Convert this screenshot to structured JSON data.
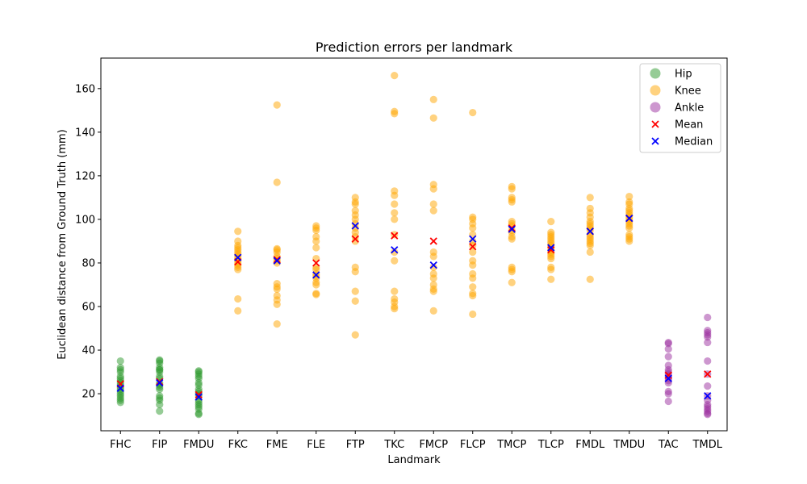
{
  "chart_data": {
    "type": "scatter",
    "title": "Prediction errors per landmark",
    "xlabel": "Landmark",
    "ylabel": "Euclidean distance from Ground Truth (mm)",
    "ylim": [
      3,
      174
    ],
    "yticks": [
      20,
      40,
      60,
      80,
      100,
      120,
      140,
      160
    ],
    "categories": [
      "FHC",
      "FIP",
      "FMDU",
      "FKC",
      "FME",
      "FLE",
      "FTP",
      "TKC",
      "FMCP",
      "FLCP",
      "TMCP",
      "TLCP",
      "FMDL",
      "TMDU",
      "TAC",
      "TMDL"
    ],
    "grid": false,
    "legend_position": "top-right",
    "groups": [
      {
        "name": "Hip",
        "color": "#2e9a2e"
      },
      {
        "name": "Knee",
        "color": "#ffa500"
      },
      {
        "name": "Ankle",
        "color": "#9b30a0"
      }
    ],
    "stat_markers": [
      {
        "name": "Mean",
        "color": "#ff0000"
      },
      {
        "name": "Median",
        "color": "#0000ff"
      }
    ],
    "landmarks": [
      {
        "name": "FHC",
        "group": "Hip",
        "points": [
          35,
          32,
          31,
          30,
          28,
          27,
          26,
          25,
          24,
          23,
          22,
          21,
          20,
          19,
          18,
          17,
          16
        ],
        "mean": 24.5,
        "median": 22.5
      },
      {
        "name": "FIP",
        "group": "Hip",
        "points": [
          35.5,
          35,
          34,
          32,
          31,
          31,
          30,
          28,
          27,
          25,
          24,
          23,
          22,
          19,
          18,
          17,
          15,
          12
        ],
        "mean": 25.5,
        "median": 25
      },
      {
        "name": "FMDU",
        "group": "Hip",
        "points": [
          30.5,
          30,
          29,
          28,
          27,
          25,
          24,
          22,
          21,
          20,
          19,
          17,
          16,
          15,
          14,
          13,
          11,
          10.5
        ],
        "mean": 19.5,
        "median": 18.5
      },
      {
        "name": "FKC",
        "group": "Knee",
        "points": [
          94.5,
          90,
          88,
          87,
          86,
          85,
          84,
          83,
          82,
          81,
          80,
          79,
          78,
          77,
          63.5,
          58
        ],
        "mean": 80.5,
        "median": 82.5
      },
      {
        "name": "FME",
        "group": "Knee",
        "points": [
          152.5,
          117,
          86.5,
          86,
          85,
          83,
          82,
          81,
          80,
          70.5,
          69,
          68,
          65,
          63,
          61,
          52
        ],
        "mean": 81.5,
        "median": 81
      },
      {
        "name": "FLE",
        "group": "Knee",
        "points": [
          97,
          96,
          95,
          92,
          90,
          87,
          82,
          78,
          77,
          75,
          74,
          73,
          71,
          70,
          66,
          65.5
        ],
        "mean": 80,
        "median": 74.5
      },
      {
        "name": "FTP",
        "group": "Knee",
        "points": [
          110,
          108,
          107,
          104,
          102,
          100,
          98,
          96,
          94,
          92,
          90,
          78,
          76,
          67,
          62.5,
          47
        ],
        "mean": 91,
        "median": 97
      },
      {
        "name": "TKC",
        "group": "Knee",
        "points": [
          166,
          149.5,
          148.5,
          113,
          111,
          107,
          103,
          100,
          93,
          85,
          81,
          67,
          63.5,
          62,
          60,
          59
        ],
        "mean": 92.5,
        "median": 86
      },
      {
        "name": "FMCP",
        "group": "Knee",
        "points": [
          155,
          146.5,
          116,
          114,
          107,
          104,
          85,
          83,
          78,
          75,
          73,
          70,
          68,
          67,
          58
        ],
        "mean": 90,
        "median": 79
      },
      {
        "name": "FLCP",
        "group": "Knee",
        "points": [
          149,
          101,
          100,
          98,
          96,
          93,
          90,
          88,
          85,
          81,
          79,
          75,
          73,
          69,
          66,
          65,
          56.5
        ],
        "mean": 87.5,
        "median": 91
      },
      {
        "name": "TMCP",
        "group": "Knee",
        "points": [
          115,
          114,
          110,
          109,
          108,
          99,
          98,
          97,
          95,
          94,
          92,
          91,
          78,
          77,
          76,
          71
        ],
        "mean": 96,
        "median": 95.5
      },
      {
        "name": "TLCP",
        "group": "Knee",
        "points": [
          99,
          94,
          93,
          92,
          91,
          90,
          89,
          88,
          87,
          86,
          85,
          84,
          83,
          82,
          78,
          77,
          72.5
        ],
        "mean": 86,
        "median": 87
      },
      {
        "name": "FMDL",
        "group": "Knee",
        "points": [
          110,
          105,
          103,
          101,
          99,
          98,
          97,
          96,
          95,
          93,
          92,
          91,
          90,
          89,
          88,
          85,
          72.5
        ],
        "mean": 94.5,
        "median": 94.5
      },
      {
        "name": "TMDU",
        "group": "Knee",
        "points": [
          110.5,
          108,
          107,
          105,
          104,
          103,
          102,
          101,
          100,
          99,
          98,
          97,
          96,
          93,
          92,
          91,
          90
        ],
        "mean": 100.5,
        "median": 100.5
      },
      {
        "name": "TAC",
        "group": "Ankle",
        "points": [
          43.5,
          43,
          40.5,
          37,
          33,
          31,
          30,
          29,
          28,
          27,
          26,
          25,
          21,
          20,
          16.5
        ],
        "mean": 28.5,
        "median": 27
      },
      {
        "name": "TMDL",
        "group": "Ankle",
        "points": [
          55,
          49,
          48,
          47,
          46,
          43.5,
          35,
          29,
          23.5,
          19,
          17,
          15,
          14,
          13,
          12,
          11,
          10.5
        ],
        "mean": 29,
        "median": 19
      }
    ]
  }
}
